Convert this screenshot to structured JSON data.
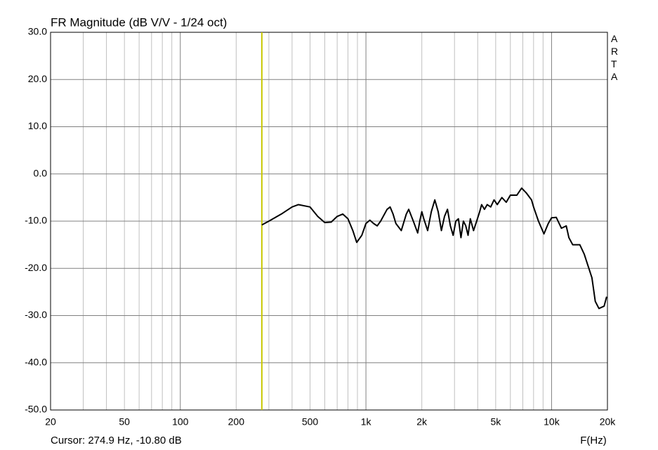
{
  "chart_data": {
    "type": "line",
    "title": "FR Magnitude (dB V/V - 1/24 oct)",
    "x_label": "F(Hz)",
    "watermark": "ARTA",
    "log_x": true,
    "grid": true,
    "color": "#000000",
    "xlim": [
      20,
      20000
    ],
    "ylim": [
      -50,
      30
    ],
    "xticks": [
      20,
      50,
      100,
      200,
      500,
      {
        "value": 1000,
        "label": "1k"
      },
      {
        "value": 2000,
        "label": "2k"
      },
      {
        "value": 5000,
        "label": "5k"
      },
      {
        "value": 10000,
        "label": "10k"
      },
      {
        "value": 20000,
        "label": "20k"
      }
    ],
    "xgrid": [
      30,
      40,
      50,
      60,
      70,
      80,
      90,
      100,
      200,
      300,
      400,
      500,
      600,
      700,
      800,
      900,
      1000,
      2000,
      3000,
      4000,
      5000,
      6000,
      7000,
      8000,
      9000,
      10000
    ],
    "yticks": [
      {
        "value": 30,
        "label": "30.0"
      },
      {
        "value": 20,
        "label": "20.0"
      },
      {
        "value": 10,
        "label": "10.0"
      },
      {
        "value": 0,
        "label": "0.0"
      },
      {
        "value": -10,
        "label": "-10.0"
      },
      {
        "value": -20,
        "label": "-20.0"
      },
      {
        "value": -30,
        "label": "-30.0"
      },
      {
        "value": -40,
        "label": "-40.0"
      },
      {
        "value": -50,
        "label": "-50.0"
      }
    ],
    "cursor": {
      "label": "Cursor: 274.9 Hz, -10.80 dB",
      "x": 274.9,
      "y": -10.8,
      "color": "#c8c800"
    },
    "x": [
      275,
      300,
      350,
      400,
      433,
      500,
      550,
      600,
      650,
      700,
      750,
      800,
      850,
      892,
      950,
      1000,
      1050,
      1100,
      1150,
      1200,
      1300,
      1350,
      1400,
      1450,
      1550,
      1650,
      1700,
      1800,
      1900,
      1950,
      2000,
      2050,
      2150,
      2250,
      2350,
      2450,
      2550,
      2650,
      2750,
      2850,
      2950,
      3050,
      3150,
      3250,
      3350,
      3450,
      3550,
      3650,
      3800,
      3950,
      4100,
      4200,
      4350,
      4500,
      4700,
      4900,
      5100,
      5400,
      5700,
      6000,
      6500,
      6900,
      7300,
      7800,
      8000,
      8500,
      9100,
      9600,
      10000,
      10600,
      11300,
      12000,
      12400,
      13000,
      14200,
      15000,
      16500,
      17200,
      18000,
      19200,
      19800
    ],
    "values": [
      -10.8,
      -10,
      -8.5,
      -7,
      -6.5,
      -7,
      -9,
      -10.3,
      -10.2,
      -9,
      -8.5,
      -9.5,
      -12,
      -14.5,
      -13,
      -10.5,
      -9.8,
      -10.5,
      -11,
      -10,
      -7.5,
      -7,
      -8.5,
      -10.5,
      -12,
      -8.5,
      -7.5,
      -10,
      -12.5,
      -10,
      -8,
      -9.5,
      -12,
      -8,
      -5.5,
      -8,
      -12,
      -9,
      -7.5,
      -11,
      -13,
      -10,
      -9.5,
      -13.5,
      -10,
      -11,
      -13,
      -9.5,
      -12,
      -10,
      -8,
      -6.5,
      -7.5,
      -6.5,
      -7,
      -5.5,
      -6.5,
      -5,
      -6,
      -4.5,
      -4.5,
      -3,
      -4,
      -5.5,
      -7,
      -10,
      -12.7,
      -10.5,
      -9.3,
      -9.2,
      -11.5,
      -11,
      -13.5,
      -15,
      -15,
      -17,
      -22,
      -27,
      -28.5,
      -28,
      -26
    ]
  }
}
